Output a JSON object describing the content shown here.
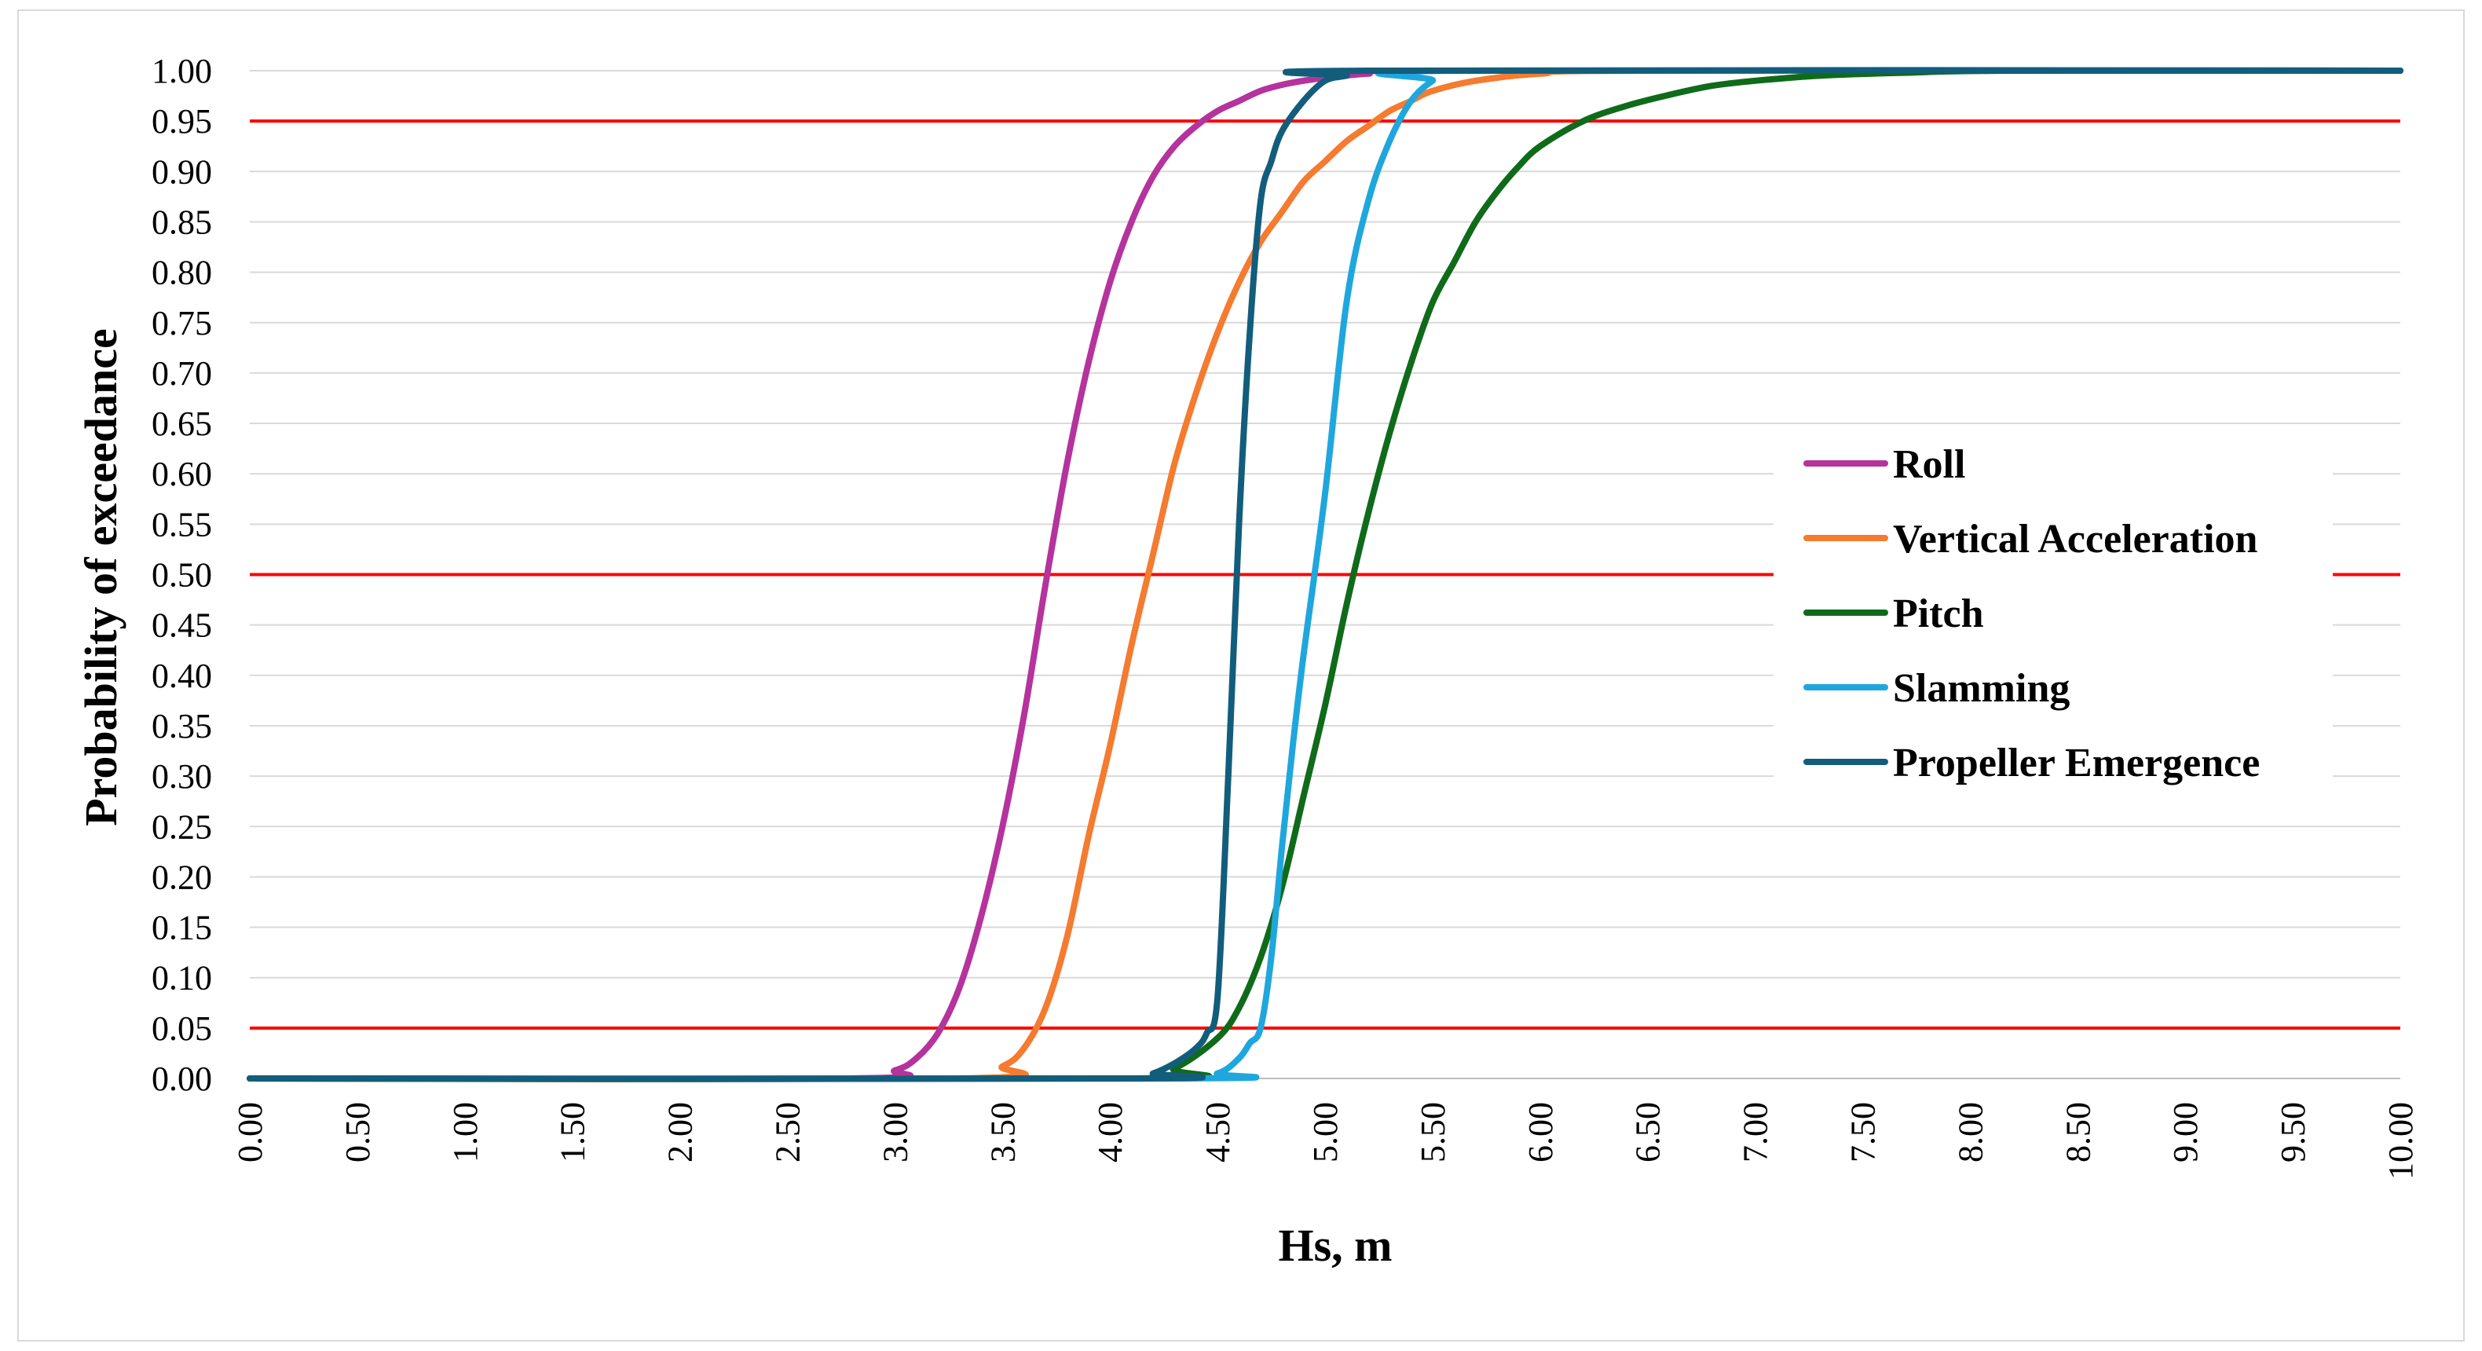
{
  "chart_data": {
    "type": "line",
    "title": "",
    "xlabel": "Hs, m",
    "ylabel": "Probability of exceedance",
    "xlim": [
      0,
      10
    ],
    "ylim": [
      0,
      1
    ],
    "x_ticks": [
      "0.00",
      "0.50",
      "1.00",
      "1.50",
      "2.00",
      "2.50",
      "3.00",
      "3.50",
      "4.00",
      "4.50",
      "5.00",
      "5.50",
      "6.00",
      "6.50",
      "7.00",
      "7.50",
      "8.00",
      "8.50",
      "9.00",
      "9.50",
      "10.00"
    ],
    "y_ticks": [
      "0.00",
      "0.05",
      "0.10",
      "0.15",
      "0.20",
      "0.25",
      "0.30",
      "0.35",
      "0.40",
      "0.45",
      "0.50",
      "0.55",
      "0.60",
      "0.65",
      "0.70",
      "0.75",
      "0.80",
      "0.85",
      "0.90",
      "0.95",
      "1.00"
    ],
    "grid": true,
    "legend_position": "right",
    "reference_lines": [
      {
        "y": 0.05,
        "color": "#ff0000"
      },
      {
        "y": 0.5,
        "color": "#ff0000"
      },
      {
        "y": 0.95,
        "color": "#ff0000"
      }
    ],
    "series": [
      {
        "name": "Roll",
        "color": "#b5339c",
        "x": [
          0,
          2.8,
          3.0,
          3.1,
          3.2,
          3.3,
          3.4,
          3.5,
          3.6,
          3.7,
          3.8,
          3.9,
          4.0,
          4.1,
          4.2,
          4.3,
          4.4,
          4.5,
          4.6,
          4.7,
          4.8,
          4.9,
          5.0,
          5.2,
          5.5,
          10
        ],
        "y": [
          0,
          0.0,
          0.008,
          0.02,
          0.045,
          0.09,
          0.16,
          0.25,
          0.36,
          0.49,
          0.61,
          0.71,
          0.79,
          0.85,
          0.895,
          0.925,
          0.945,
          0.96,
          0.97,
          0.98,
          0.986,
          0.99,
          0.993,
          0.997,
          1.0,
          1.0
        ]
      },
      {
        "name": "Vertical Acceleration",
        "color": "#f47b2f",
        "x": [
          0,
          3.3,
          3.5,
          3.6,
          3.7,
          3.8,
          3.9,
          4.0,
          4.1,
          4.2,
          4.3,
          4.4,
          4.5,
          4.6,
          4.7,
          4.8,
          4.9,
          5.0,
          5.1,
          5.2,
          5.3,
          5.4,
          5.5,
          5.7,
          6.0,
          6.5,
          10
        ],
        "y": [
          0,
          0.0,
          0.012,
          0.03,
          0.07,
          0.14,
          0.24,
          0.33,
          0.43,
          0.52,
          0.61,
          0.68,
          0.74,
          0.79,
          0.83,
          0.86,
          0.89,
          0.91,
          0.93,
          0.945,
          0.96,
          0.97,
          0.98,
          0.99,
          0.997,
          1.0,
          1.0
        ]
      },
      {
        "name": "Pitch",
        "color": "#0f6b1a",
        "x": [
          0,
          4.1,
          4.3,
          4.5,
          4.6,
          4.7,
          4.8,
          4.9,
          5.0,
          5.1,
          5.2,
          5.3,
          5.4,
          5.5,
          5.6,
          5.7,
          5.8,
          5.9,
          6.0,
          6.2,
          6.4,
          6.6,
          6.8,
          7.0,
          7.3,
          7.7,
          8.2,
          10
        ],
        "y": [
          0,
          0.0,
          0.01,
          0.04,
          0.07,
          0.12,
          0.19,
          0.28,
          0.37,
          0.47,
          0.56,
          0.64,
          0.71,
          0.77,
          0.81,
          0.85,
          0.88,
          0.905,
          0.925,
          0.95,
          0.965,
          0.976,
          0.985,
          0.99,
          0.995,
          0.998,
          1.0,
          1.0
        ]
      },
      {
        "name": "Slamming",
        "color": "#1fa7dd",
        "x": [
          0,
          4.3,
          4.5,
          4.6,
          4.65,
          4.7,
          4.75,
          4.8,
          4.85,
          4.9,
          5.0,
          5.1,
          5.2,
          5.3,
          5.4,
          5.5,
          5.6,
          10
        ],
        "y": [
          0,
          0.0,
          0.005,
          0.02,
          0.035,
          0.05,
          0.12,
          0.23,
          0.33,
          0.42,
          0.58,
          0.77,
          0.87,
          0.93,
          0.97,
          0.99,
          1.0,
          1.0
        ]
      },
      {
        "name": "Propeller Emergence",
        "color": "#135d7c",
        "x": [
          0,
          4.1,
          4.2,
          4.3,
          4.4,
          4.45,
          4.5,
          4.55,
          4.6,
          4.65,
          4.7,
          4.75,
          4.8,
          4.9,
          5.0,
          5.1,
          5.2,
          10
        ],
        "y": [
          0,
          0.0,
          0.005,
          0.015,
          0.03,
          0.045,
          0.08,
          0.3,
          0.55,
          0.74,
          0.87,
          0.91,
          0.94,
          0.97,
          0.99,
          0.995,
          1.0,
          1.0
        ]
      }
    ]
  }
}
